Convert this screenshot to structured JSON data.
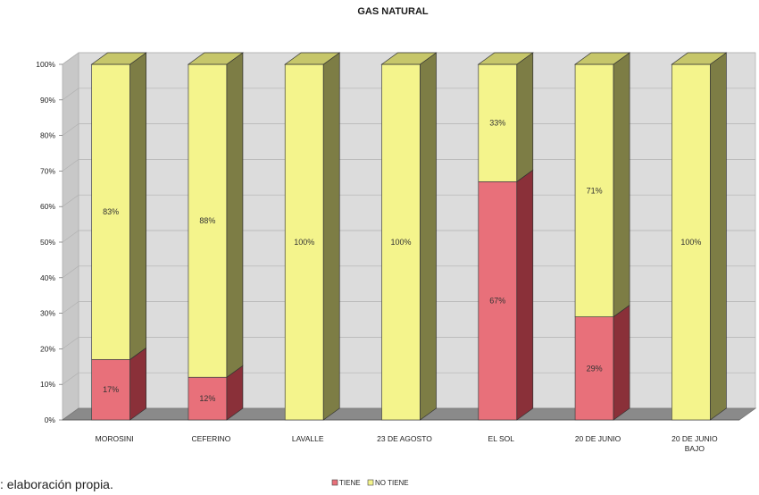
{
  "chart_data": {
    "type": "bar",
    "stacked": true,
    "percent": true,
    "title": "GAS NATURAL",
    "categories": [
      "MOROSINI",
      "CEFERINO",
      "LAVALLE",
      "23 DE AGOSTO",
      "EL SOL",
      "20 DE JUNIO",
      "20 DE JUNIO BAJO"
    ],
    "series": [
      {
        "name": "TIENE",
        "values": [
          17,
          12,
          0,
          0,
          67,
          29,
          0
        ],
        "color": "#e8707a"
      },
      {
        "name": "NO TIENE",
        "values": [
          83,
          88,
          100,
          100,
          33,
          71,
          100
        ],
        "color": "#f4f48c"
      }
    ],
    "data_labels": {
      "TIENE": [
        "17%",
        "12%",
        "",
        "",
        "67%",
        "29%",
        ""
      ],
      "NO TIENE": [
        "83%",
        "88%",
        "100%",
        "100%",
        "33%",
        "71%",
        "100%"
      ]
    },
    "ylim": [
      0,
      100
    ],
    "yticks": [
      "0%",
      "10%",
      "20%",
      "30%",
      "40%",
      "50%",
      "60%",
      "70%",
      "80%",
      "90%",
      "100%"
    ],
    "grid": true,
    "legend_position": "bottom"
  },
  "source_note": ": elaboración propia."
}
